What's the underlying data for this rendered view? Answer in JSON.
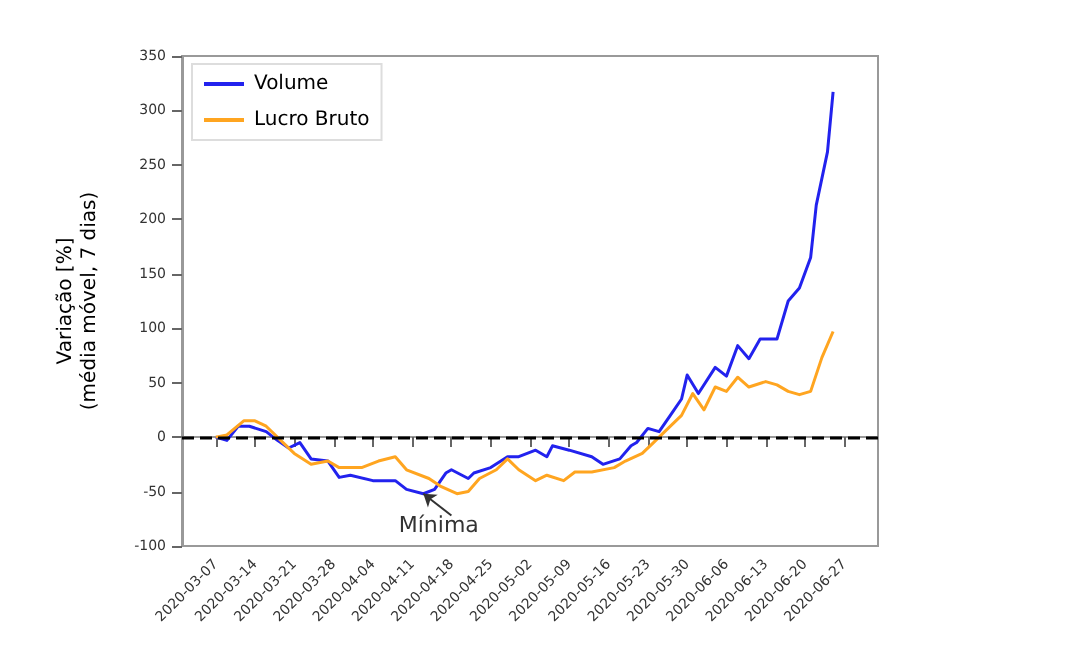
{
  "chart_data": {
    "type": "line",
    "ylabel": "Variação [%]\n(média móvel, 7 dias)",
    "xlim": [
      "2020-03-01",
      "2020-07-03"
    ],
    "xticks": [
      "2020-03-07",
      "2020-03-14",
      "2020-03-21",
      "2020-03-28",
      "2020-04-04",
      "2020-04-11",
      "2020-04-18",
      "2020-04-25",
      "2020-05-02",
      "2020-05-09",
      "2020-05-16",
      "2020-05-23",
      "2020-05-30",
      "2020-06-06",
      "2020-06-13",
      "2020-06-20",
      "2020-06-27"
    ],
    "ylim": [
      -100,
      350
    ],
    "yticks": [
      -100,
      -50,
      0,
      50,
      100,
      150,
      200,
      250,
      300,
      350
    ],
    "series": [
      {
        "name": "Volume",
        "color": "#2222ee",
        "x": [
          "2020-03-07",
          "2020-03-09",
          "2020-03-11",
          "2020-03-13",
          "2020-03-16",
          "2020-03-18",
          "2020-03-20",
          "2020-03-22",
          "2020-03-24",
          "2020-03-27",
          "2020-03-29",
          "2020-03-31",
          "2020-04-04",
          "2020-04-08",
          "2020-04-10",
          "2020-04-13",
          "2020-04-15",
          "2020-04-17",
          "2020-04-18",
          "2020-04-21",
          "2020-04-22",
          "2020-04-25",
          "2020-04-28",
          "2020-04-30",
          "2020-05-03",
          "2020-05-05",
          "2020-05-06",
          "2020-05-09",
          "2020-05-13",
          "2020-05-15",
          "2020-05-18",
          "2020-05-20",
          "2020-05-21",
          "2020-05-23",
          "2020-05-25",
          "2020-05-27",
          "2020-05-29",
          "2020-05-30",
          "2020-06-01",
          "2020-06-04",
          "2020-06-06",
          "2020-06-08",
          "2020-06-10",
          "2020-06-12",
          "2020-06-15",
          "2020-06-17",
          "2020-06-19",
          "2020-06-21",
          "2020-06-22",
          "2020-06-24",
          "2020-06-25"
        ],
        "values": [
          0,
          -3,
          10,
          10,
          5,
          -3,
          -10,
          -5,
          -20,
          -22,
          -37,
          -35,
          -40,
          -40,
          -48,
          -52,
          -48,
          -33,
          -30,
          -38,
          -33,
          -28,
          -18,
          -18,
          -12,
          -18,
          -8,
          -12,
          -18,
          -25,
          -20,
          -8,
          -5,
          8,
          5,
          20,
          35,
          57,
          40,
          64,
          56,
          84,
          72,
          90,
          90,
          125,
          137,
          165,
          213,
          262,
          317
        ]
      },
      {
        "name": "Lucro Bruto",
        "color": "#ffa520",
        "x": [
          "2020-03-07",
          "2020-03-09",
          "2020-03-12",
          "2020-03-14",
          "2020-03-16",
          "2020-03-19",
          "2020-03-21",
          "2020-03-24",
          "2020-03-27",
          "2020-03-29",
          "2020-04-02",
          "2020-04-05",
          "2020-04-08",
          "2020-04-10",
          "2020-04-14",
          "2020-04-16",
          "2020-04-19",
          "2020-04-21",
          "2020-04-23",
          "2020-04-26",
          "2020-04-28",
          "2020-04-30",
          "2020-05-03",
          "2020-05-05",
          "2020-05-08",
          "2020-05-10",
          "2020-05-13",
          "2020-05-17",
          "2020-05-19",
          "2020-05-22",
          "2020-05-24",
          "2020-05-26",
          "2020-05-29",
          "2020-05-31",
          "2020-06-02",
          "2020-06-04",
          "2020-06-06",
          "2020-06-08",
          "2020-06-10",
          "2020-06-13",
          "2020-06-15",
          "2020-06-17",
          "2020-06-19",
          "2020-06-21",
          "2020-06-23",
          "2020-06-25"
        ],
        "values": [
          0,
          2,
          15,
          15,
          10,
          -5,
          -15,
          -25,
          -22,
          -28,
          -28,
          -22,
          -18,
          -30,
          -38,
          -45,
          -52,
          -50,
          -38,
          -30,
          -20,
          -30,
          -40,
          -35,
          -40,
          -32,
          -32,
          -28,
          -22,
          -15,
          -5,
          5,
          20,
          40,
          25,
          46,
          42,
          55,
          46,
          51,
          48,
          42,
          39,
          42,
          73,
          97
        ]
      }
    ],
    "ref_lines": [
      {
        "axis": "y",
        "value": 0,
        "color": "#000000",
        "line_style": "dashed"
      }
    ],
    "annotations": [
      {
        "text": "Mínima",
        "x": "2020-04-13",
        "y": -52
      }
    ],
    "legend": "top left",
    "grid": false,
    "marker": "none",
    "line_style": "solid"
  }
}
